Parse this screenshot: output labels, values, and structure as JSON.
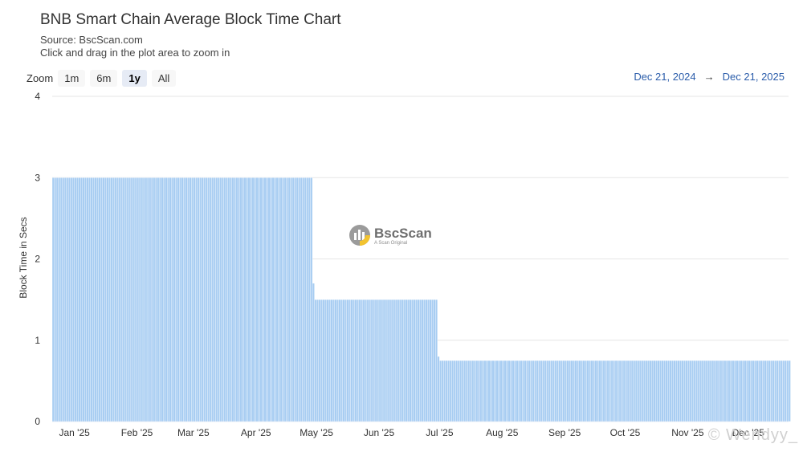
{
  "header": {
    "title": "BNB Smart Chain Average Block Time Chart",
    "source": "Source: BscScan.com",
    "hint": "Click and drag in the plot area to zoom in"
  },
  "zoom": {
    "label": "Zoom",
    "buttons": [
      "1m",
      "6m",
      "1y",
      "All"
    ],
    "active": "1y"
  },
  "range": {
    "from": "Dec 21, 2024",
    "arrow": "→",
    "to": "Dec 21, 2025"
  },
  "watermark": {
    "title": "BscScan",
    "subtitle": "A Scan Original"
  },
  "credit": "© Wendyy_",
  "colors": {
    "bar": "#a8cdf2",
    "bar_edge": "#ffffff",
    "grid": "#e6e6e6",
    "range_text": "#2a5caa"
  },
  "chart_data": {
    "type": "bar",
    "ylabel": "Block Time in Secs",
    "ylim": [
      0,
      4
    ],
    "yticks": [
      0,
      1,
      2,
      3,
      4
    ],
    "xlim": [
      "2024-12-21",
      "2025-12-21"
    ],
    "xticks": [
      {
        "date": "2025-01-01",
        "label": "Jan '25"
      },
      {
        "date": "2025-02-01",
        "label": "Feb '25"
      },
      {
        "date": "2025-03-01",
        "label": "Mar '25"
      },
      {
        "date": "2025-04-01",
        "label": "Apr '25"
      },
      {
        "date": "2025-05-01",
        "label": "May '25"
      },
      {
        "date": "2025-06-01",
        "label": "Jun '25"
      },
      {
        "date": "2025-07-01",
        "label": "Jul '25"
      },
      {
        "date": "2025-08-01",
        "label": "Aug '25"
      },
      {
        "date": "2025-09-01",
        "label": "Sep '25"
      },
      {
        "date": "2025-10-01",
        "label": "Oct '25"
      },
      {
        "date": "2025-11-01",
        "label": "Nov '25"
      },
      {
        "date": "2025-12-01",
        "label": "Dec '25"
      }
    ],
    "series": [
      {
        "segments": [
          {
            "from": "2024-12-21",
            "to": "2025-04-28",
            "value": 3.0
          },
          {
            "from": "2025-04-29",
            "to": "2025-04-29",
            "value": 1.7
          },
          {
            "from": "2025-04-30",
            "to": "2025-06-29",
            "value": 1.5
          },
          {
            "from": "2025-06-30",
            "to": "2025-06-30",
            "value": 0.8
          },
          {
            "from": "2025-07-01",
            "to": "2025-12-21",
            "value": 0.75
          }
        ]
      }
    ]
  }
}
